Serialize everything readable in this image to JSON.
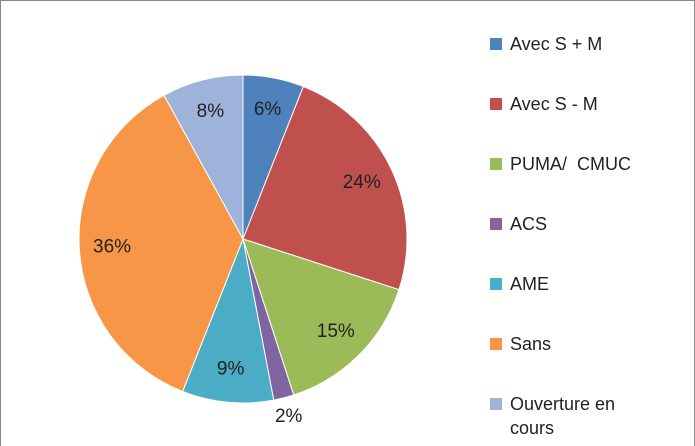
{
  "chart_data": {
    "type": "pie",
    "categories": [
      "Avec S + M",
      "Avec S - M",
      "PUMA/  CMUC",
      "ACS",
      "AME",
      "Sans",
      "Ouverture en cours"
    ],
    "values": [
      6,
      24,
      15,
      2,
      9,
      36,
      8
    ],
    "value_labels": [
      "6%",
      "24%",
      "15%",
      "2%",
      "9%",
      "36%",
      "8%"
    ],
    "colors": [
      "#4f81bd",
      "#c0504d",
      "#9bbb59",
      "#8064a2",
      "#4bacc6",
      "#f79646",
      "#9db3d9"
    ],
    "legend": "right"
  }
}
